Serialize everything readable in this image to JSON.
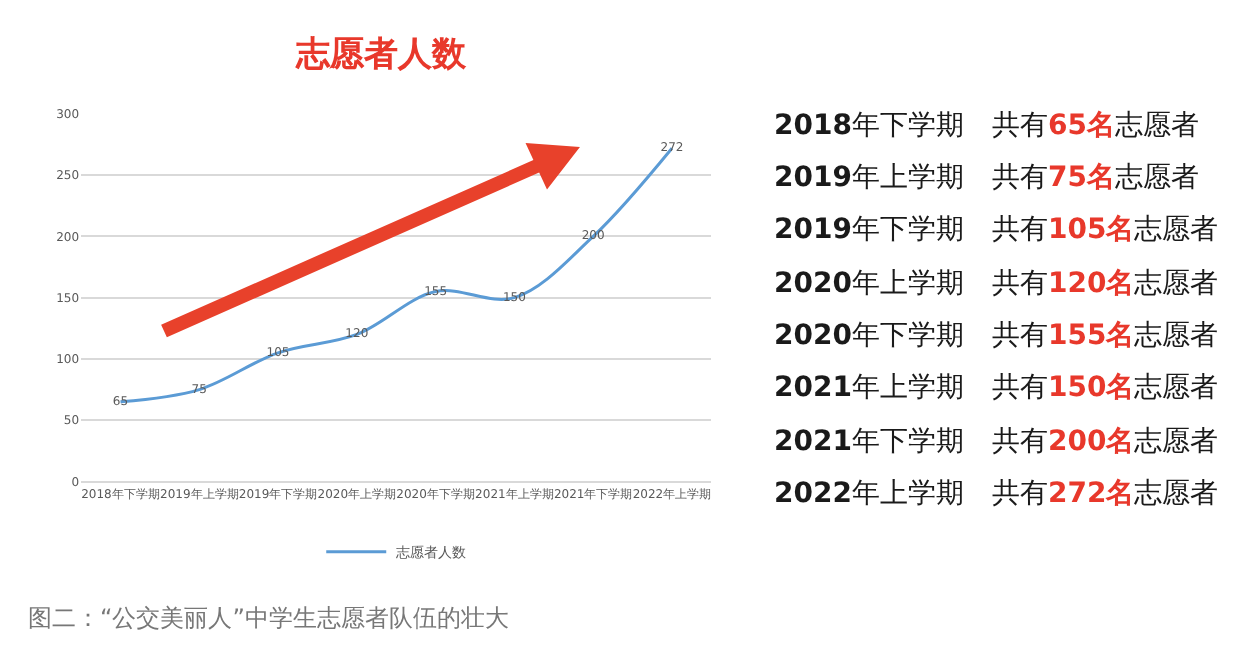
{
  "chart_data": {
    "type": "line",
    "title": "志愿者人数",
    "categories": [
      "2018年下学期",
      "2019年上学期",
      "2019年下学期",
      "2020年上学期",
      "2020年下学期",
      "2021年上学期",
      "2021年下学期",
      "2022年上学期"
    ],
    "series": [
      {
        "name": "志愿者人数",
        "color": "#5b9bd5",
        "values": [
          65,
          75,
          105,
          120,
          155,
          150,
          200,
          272
        ]
      }
    ],
    "ylim": [
      0,
      300
    ],
    "yticks": [
      0,
      50,
      100,
      150,
      200,
      250,
      300
    ],
    "grid": "y",
    "legend": "bottom",
    "data_labels": true,
    "marker": "none",
    "annotations": [
      "2018年下学期　共有65名志愿者",
      "2019年上学期　共有75名志愿者",
      "2019年下学期　共有105名志愿者",
      "2020年上学期　共有120名志愿者",
      "2020年下学期　共有155名志愿者",
      "2021年上学期　共有150名志愿者",
      "2021年下学期　共有200名志愿者",
      "2022年上学期　共有272名志愿者",
      "图二：“公交美丽人”中学生志愿者队伍的壮大"
    ]
  }
}
